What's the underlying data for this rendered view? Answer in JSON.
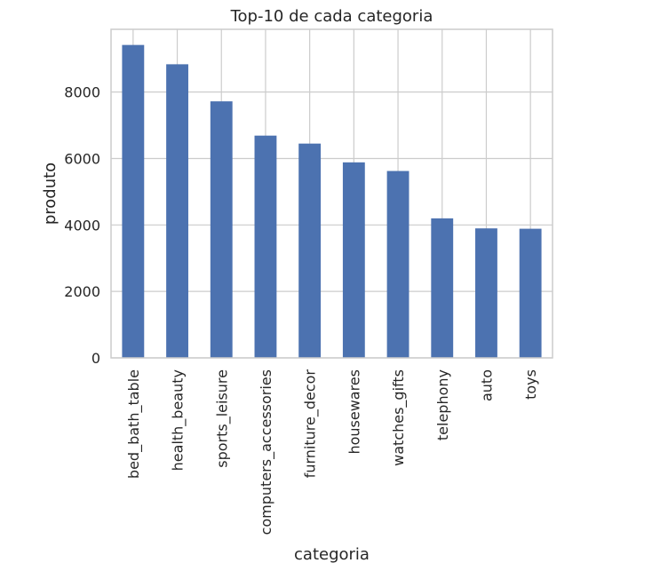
{
  "chart_data": {
    "type": "bar",
    "title": "Top-10 de cada categoria",
    "xlabel": "categoria",
    "ylabel": "produto",
    "categories": [
      "bed_bath_table",
      "health_beauty",
      "sports_leisure",
      "computers_accessories",
      "furniture_decor",
      "housewares",
      "watches_gifts",
      "telephony",
      "auto",
      "toys"
    ],
    "values": [
      9417,
      8836,
      7720,
      6689,
      6449,
      5884,
      5624,
      4199,
      3897,
      3886
    ],
    "yticks": [
      0,
      2000,
      4000,
      6000,
      8000
    ],
    "ylim": [
      0,
      9888
    ],
    "grid": true,
    "bar_color": "#4c72b0"
  }
}
